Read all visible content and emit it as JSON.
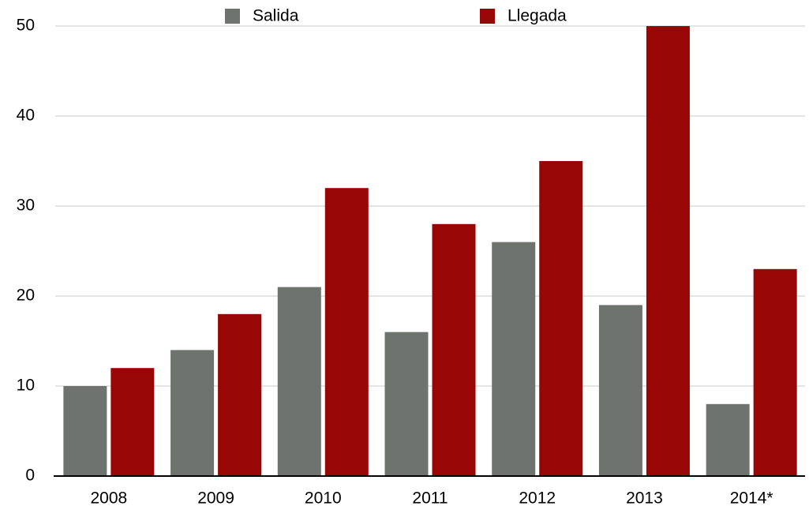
{
  "chart_data": {
    "type": "bar",
    "categories": [
      "2008",
      "2009",
      "2010",
      "2011",
      "2012",
      "2013",
      "2014*"
    ],
    "series": [
      {
        "name": "Salida",
        "color": "#6f7370",
        "values": [
          10,
          14,
          21,
          16,
          26,
          19,
          8
        ]
      },
      {
        "name": "Llegada",
        "color": "#990606",
        "values": [
          12,
          18,
          32,
          28,
          35,
          50,
          23
        ]
      }
    ],
    "ylim": [
      0,
      50
    ],
    "yticks": [
      0,
      10,
      20,
      30,
      40,
      50
    ],
    "grid": true,
    "legend": "top"
  }
}
